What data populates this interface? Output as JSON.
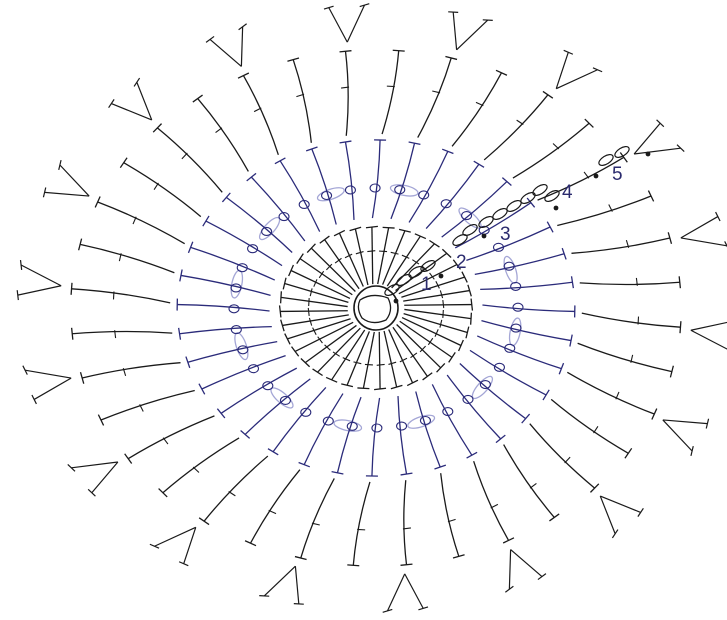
{
  "diagram": {
    "type": "crochet-round-chart",
    "rounds": 5,
    "spokes": 36,
    "colors": {
      "primary": "#1a1a1a",
      "secondary": "#2b2b7a",
      "faint": "#a4a6d6",
      "background": "#ffffff"
    },
    "round_labels": [
      "1",
      "2",
      "3",
      "4",
      "5"
    ],
    "legend": []
  }
}
